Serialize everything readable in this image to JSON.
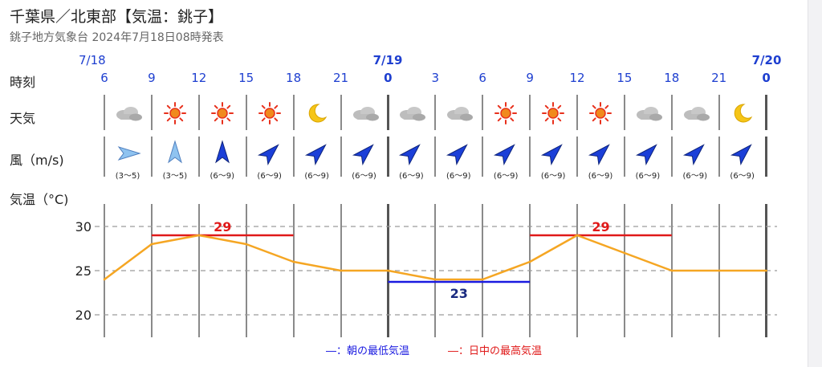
{
  "header": {
    "title": "千葉県／北東部【気温：銚子】",
    "subtitle": "銚子地方気象台 2024年7月18日08時発表"
  },
  "row_labels": {
    "time": "時刻",
    "weather": "天気",
    "wind": "風（m/s)",
    "temp": "気温（°C)"
  },
  "dates": [
    "7/18",
    "7/19",
    "7/20"
  ],
  "hours": [
    "6",
    "9",
    "12",
    "15",
    "18",
    "21",
    "0",
    "3",
    "6",
    "9",
    "12",
    "15",
    "18",
    "21",
    "0"
  ],
  "weather": [
    "cloudy-icon",
    "sunny-icon",
    "sunny-icon",
    "sunny-icon",
    "clear-night-icon",
    "cloudy-icon",
    "cloudy-icon",
    "cloudy-icon",
    "sunny-icon",
    "sunny-icon",
    "sunny-icon",
    "cloudy-icon",
    "cloudy-icon",
    "clear-night-icon"
  ],
  "wind": [
    {
      "speed": "(3〜5)",
      "dir_deg": 90,
      "strength": "light"
    },
    {
      "speed": "(3〜5)",
      "dir_deg": 0,
      "strength": "light"
    },
    {
      "speed": "(6〜9)",
      "dir_deg": 0,
      "strength": "strong"
    },
    {
      "speed": "(6〜9)",
      "dir_deg": 45,
      "strength": "strong"
    },
    {
      "speed": "(6〜9)",
      "dir_deg": 45,
      "strength": "strong"
    },
    {
      "speed": "(6〜9)",
      "dir_deg": 45,
      "strength": "strong"
    },
    {
      "speed": "(6〜9)",
      "dir_deg": 45,
      "strength": "strong"
    },
    {
      "speed": "(6〜9)",
      "dir_deg": 45,
      "strength": "strong"
    },
    {
      "speed": "(6〜9)",
      "dir_deg": 45,
      "strength": "strong"
    },
    {
      "speed": "(6〜9)",
      "dir_deg": 45,
      "strength": "strong"
    },
    {
      "speed": "(6〜9)",
      "dir_deg": 45,
      "strength": "strong"
    },
    {
      "speed": "(6〜9)",
      "dir_deg": 45,
      "strength": "strong"
    },
    {
      "speed": "(6〜9)",
      "dir_deg": 45,
      "strength": "strong"
    },
    {
      "speed": "(6〜9)",
      "dir_deg": 45,
      "strength": "strong"
    }
  ],
  "colors": {
    "temp_line": "#f5a623",
    "max_line": "#e01919",
    "min_line": "#1a1ae0",
    "grid": "#9a9a9a",
    "hour_text": "#1e3fd0"
  },
  "chart_data": {
    "type": "line",
    "x": [
      0,
      1,
      2,
      3,
      4,
      5,
      6,
      7,
      8,
      9,
      10,
      11,
      12,
      13,
      14
    ],
    "values": [
      24,
      28,
      29,
      28,
      26,
      25,
      25,
      24,
      24,
      26,
      29,
      27,
      25,
      25,
      25
    ],
    "yticks": [
      20,
      25,
      30
    ],
    "ylim": [
      18,
      33
    ],
    "max_temps": [
      {
        "value": 29,
        "label": "29",
        "from": 1,
        "to": 4
      },
      {
        "value": 29,
        "label": "29",
        "from": 9,
        "to": 12
      }
    ],
    "min_temps": [
      {
        "value": 23,
        "label": "23",
        "from": 6,
        "to": 9
      }
    ]
  },
  "legend": {
    "min": "―：朝の最低気温",
    "max": "―：日中の最高気温"
  }
}
